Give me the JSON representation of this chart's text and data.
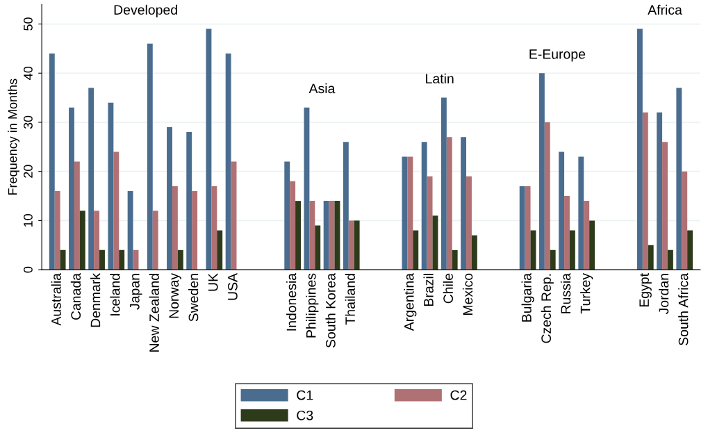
{
  "chart_data": {
    "type": "bar",
    "ylabel": "Frequency in Months",
    "categories": [
      "Australia",
      "Canada",
      "Denmark",
      "Iceland",
      "Japan",
      "New Zealand",
      "Norway",
      "Sweden",
      "UK",
      "USA",
      null,
      null,
      "Indonesia",
      "Philippines",
      "South Korea",
      "Thailand",
      null,
      null,
      "Argentina",
      "Brazil",
      "Chile",
      "Mexico",
      null,
      null,
      "Bulgaria",
      "Czech Rep.",
      "Russia",
      "Turkey",
      null,
      null,
      "Egypt",
      "Jordan",
      "South Africa"
    ],
    "series": [
      {
        "name": "C1",
        "color": "#4a6d8f",
        "values": [
          44,
          33,
          37,
          34,
          16,
          46,
          29,
          28,
          49,
          44,
          null,
          null,
          22,
          33,
          14,
          26,
          null,
          null,
          23,
          26,
          35,
          27,
          null,
          null,
          17,
          40,
          24,
          23,
          null,
          null,
          49,
          32,
          37
        ]
      },
      {
        "name": "C2",
        "color": "#b07174",
        "values": [
          16,
          22,
          12,
          24,
          4,
          12,
          17,
          16,
          17,
          22,
          null,
          null,
          18,
          14,
          14,
          10,
          null,
          null,
          23,
          19,
          27,
          19,
          null,
          null,
          17,
          30,
          15,
          14,
          null,
          null,
          32,
          26,
          20
        ]
      },
      {
        "name": "C3",
        "color": "#2d3b1a",
        "values": [
          4,
          12,
          4,
          4,
          null,
          null,
          4,
          null,
          8,
          null,
          null,
          null,
          14,
          9,
          14,
          10,
          null,
          null,
          8,
          11,
          4,
          7,
          null,
          null,
          8,
          4,
          8,
          10,
          null,
          null,
          5,
          4,
          8
        ]
      }
    ],
    "annotations": [
      "Developed",
      "Asia",
      "Latin",
      "E-Europe",
      "Africa"
    ],
    "ylim": [
      0,
      54
    ],
    "yticks": [
      0,
      10,
      20,
      30,
      40,
      50
    ],
    "grid": "y",
    "legend": "bottom"
  }
}
